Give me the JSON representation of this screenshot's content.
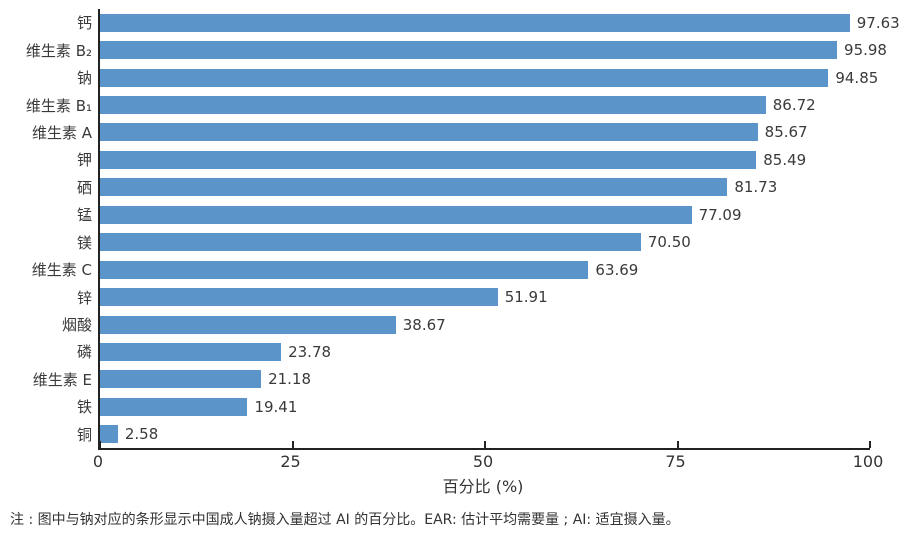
{
  "chart_data": {
    "type": "bar",
    "orientation": "horizontal",
    "categories": [
      "钙",
      "维生素 B₂",
      "钠",
      "维生素 B₁",
      "维生素 A",
      "钾",
      "硒",
      "锰",
      "镁",
      "维生素 C",
      "锌",
      "烟酸",
      "磷",
      "维生素 E",
      "铁",
      "铜"
    ],
    "values": [
      97.63,
      95.98,
      94.85,
      86.72,
      85.67,
      85.49,
      81.73,
      77.09,
      70.5,
      63.69,
      51.91,
      38.67,
      23.78,
      21.18,
      19.41,
      2.58
    ],
    "value_label_decimals": 2,
    "title": "",
    "xlabel": "百分比 (%)",
    "ylabel": "",
    "xticks": [
      0,
      25,
      50,
      75,
      100
    ],
    "xlim": [
      0,
      100
    ],
    "grid": false,
    "legend": null,
    "bar_color": "#5b94c9",
    "axis_color": "#222222",
    "text_color": "#3a3a3a"
  },
  "footnote": "注 : 图中与钠对应的条形显示中国成人钠摄入量超过 AI 的百分比。EAR: 估计平均需要量 ; AI: 适宜摄入量。"
}
